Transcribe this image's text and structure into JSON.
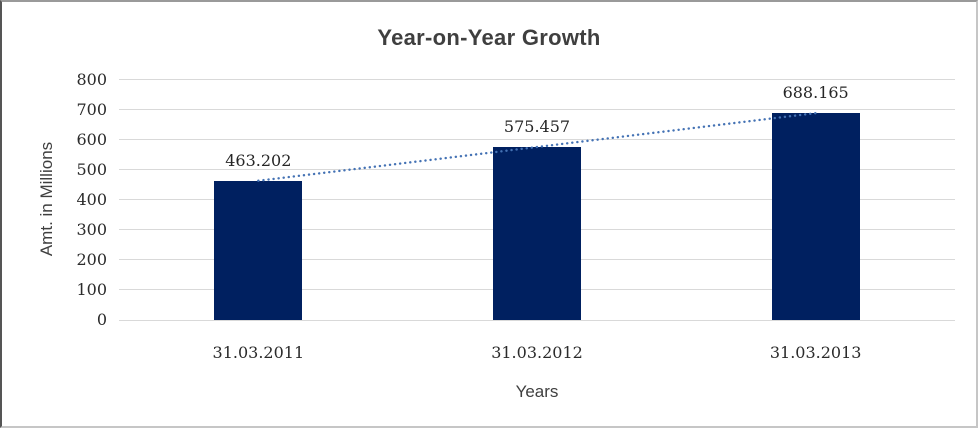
{
  "chart_data": {
    "type": "bar",
    "title": "Year-on-Year Growth",
    "xlabel": "Years",
    "ylabel": "Amt. in Millions",
    "categories": [
      "31.03.2011",
      "31.03.2012",
      "31.03.2013"
    ],
    "values": [
      463.202,
      575.457,
      688.165
    ],
    "data_labels": [
      "463.202",
      "575.457",
      "688.165"
    ],
    "ylim": [
      0,
      800
    ],
    "yticks": [
      0,
      100,
      200,
      300,
      400,
      500,
      600,
      700,
      800
    ],
    "grid": true,
    "legend": false,
    "trendline": {
      "style": "dotted",
      "through_values": [
        463.202,
        575.457,
        688.165
      ]
    },
    "colors": {
      "bar": "#002060",
      "trendline": "#4472b4",
      "gridline": "#d9d9d9",
      "title_text": "#3f3f3f",
      "label_text": "#262626"
    }
  }
}
